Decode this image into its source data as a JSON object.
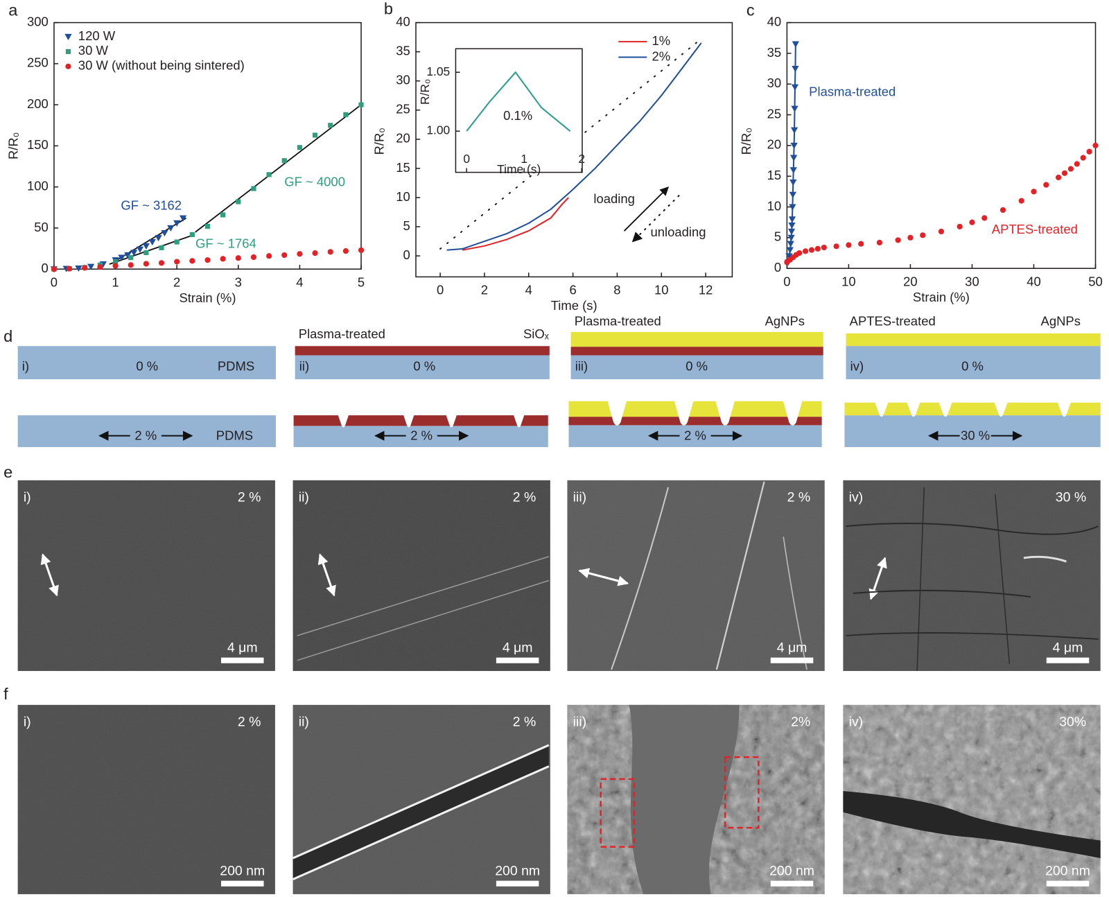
{
  "panel_labels": [
    "a",
    "b",
    "c",
    "d",
    "e",
    "f"
  ],
  "chart_data": [
    {
      "type": "scatter",
      "xlabel": "Strain (%)",
      "ylabel": "R/R₀",
      "xlim": [
        0,
        5
      ],
      "ylim": [
        0,
        300
      ],
      "xticks": [
        0,
        1,
        2,
        3,
        4,
        5
      ],
      "yticks": [
        0,
        50,
        100,
        150,
        200,
        250,
        300
      ],
      "legend": "upper left",
      "series": [
        {
          "name": "120 W",
          "color": "#1f4e9c",
          "marker": "triangle-down",
          "x": [
            0,
            0.2,
            0.4,
            0.6,
            0.8,
            1.0,
            1.1,
            1.2,
            1.3,
            1.4,
            1.5,
            1.6,
            1.7,
            1.8,
            1.9,
            2.0,
            2.1
          ],
          "values": [
            0,
            0.5,
            1,
            3,
            6,
            11,
            14,
            17,
            20,
            24,
            28,
            33,
            38,
            44,
            50,
            56,
            62
          ]
        },
        {
          "name": "30  W",
          "color": "#2e9e7e",
          "marker": "square",
          "x": [
            0,
            0.25,
            0.5,
            0.75,
            1,
            1.25,
            1.5,
            1.75,
            2,
            2.25,
            2.5,
            2.75,
            3,
            3.25,
            3.5,
            3.75,
            4,
            4.25,
            4.5,
            4.75,
            5
          ],
          "values": [
            0,
            0.5,
            2,
            5,
            9,
            14,
            20,
            26,
            33,
            42,
            52,
            66,
            82,
            98,
            115,
            132,
            148,
            163,
            175,
            188,
            200
          ]
        },
        {
          "name": "30 W (without being sintered)",
          "color": "#e32227",
          "marker": "circle",
          "x": [
            0,
            0.25,
            0.5,
            0.75,
            1,
            1.25,
            1.5,
            1.75,
            2,
            2.25,
            2.5,
            2.75,
            3,
            3.25,
            3.5,
            3.75,
            4,
            4.25,
            4.5,
            4.75,
            5
          ],
          "values": [
            0,
            0.5,
            1.5,
            2.5,
            4,
            5,
            6.5,
            7.5,
            9,
            10,
            11,
            12.5,
            13.5,
            14.5,
            16,
            17,
            18.5,
            19.5,
            21,
            22,
            23
          ]
        }
      ],
      "fit_lines": [
        {
          "label": "GF ~ 3162",
          "label_color": "#1f4e9c",
          "x": [
            1.0,
            2.15
          ],
          "values": [
            10,
            62
          ]
        },
        {
          "label": "GF ~ 1764",
          "label_color": "#2e9e7e",
          "x": [
            0.9,
            2.25
          ],
          "values": [
            6,
            41
          ]
        },
        {
          "label": "GF ~ 4000",
          "label_color": "#2e9e7e",
          "x": [
            2.3,
            5
          ],
          "values": [
            45,
            200
          ]
        }
      ]
    },
    {
      "type": "line",
      "xlabel": "Time (s)",
      "ylabel": "R/R₀",
      "xlim": [
        -1.1,
        13.2
      ],
      "ylim": [
        -3.6,
        40
      ],
      "xticks": [
        0,
        2,
        4,
        6,
        8,
        10,
        12
      ],
      "yticks": [
        0,
        5,
        10,
        15,
        20,
        25,
        30,
        35,
        40
      ],
      "legend": "upper right",
      "series": [
        {
          "name": "1%",
          "color": "#e32227",
          "linestyle": "solid",
          "x": [
            1,
            2,
            3,
            4,
            5,
            5.5,
            5.8
          ],
          "values": [
            1,
            1.7,
            2.8,
            4.3,
            6.5,
            8.8,
            10
          ]
        },
        {
          "name": "2%",
          "color": "#1f4e9c",
          "linestyle": "solid",
          "x": [
            0.3,
            1,
            2,
            3,
            4,
            5,
            6,
            7,
            8,
            9,
            10,
            11,
            11.8
          ],
          "values": [
            1,
            1.2,
            2.5,
            3.8,
            5.6,
            8,
            11.4,
            15,
            19,
            23,
            27.5,
            32.5,
            36.5
          ]
        },
        {
          "color": "#231f20",
          "linestyle": "dotted",
          "x": [
            0,
            11.6
          ],
          "values": [
            1.2,
            36.6
          ]
        }
      ],
      "annotations": [
        "loading",
        "unloading"
      ],
      "inset": {
        "xlabel": "Time (s)",
        "ylabel": "R/R₀",
        "xlim": [
          -0.19,
          2.01
        ],
        "ylim": [
          0.965,
          1.07
        ],
        "xticks": [
          0,
          1,
          2
        ],
        "yticks": [
          {
            "value": 1,
            "label": "1.00"
          },
          1.05
        ],
        "annotation": "0.1%",
        "color": "#2a9d8f",
        "x": [
          0,
          0.4,
          0.85,
          1.3,
          1.8
        ],
        "values": [
          1.0,
          1.025,
          1.05,
          1.02,
          1.0
        ]
      }
    },
    {
      "type": "scatter",
      "xlabel": "Strain (%)",
      "ylabel": "R/R₀",
      "xlim": [
        0,
        50
      ],
      "ylim": [
        0,
        40
      ],
      "xticks": [
        0,
        10,
        20,
        30,
        40,
        50
      ],
      "yticks": [
        0,
        5,
        10,
        15,
        20,
        25,
        30,
        35,
        40
      ],
      "direct_labels": true,
      "series": [
        {
          "name": "Plasma-treated",
          "color": "#1f4e9c",
          "marker": "triangle-down",
          "connect": true,
          "x": [
            0.2,
            0.35,
            0.5,
            0.6,
            0.7,
            0.75,
            0.8,
            0.85,
            0.9,
            0.95,
            1.0,
            1.05,
            1.1,
            1.15,
            1.2,
            1.25,
            1.3,
            1.35,
            1.4
          ],
          "values": [
            1,
            2,
            3,
            4,
            5,
            6,
            7,
            8,
            10,
            12,
            14,
            16,
            18,
            20,
            22.5,
            26,
            29.5,
            32.5,
            36.5
          ]
        },
        {
          "name": "APTES-treated",
          "color": "#e32227",
          "marker": "circle",
          "x": [
            0,
            0.5,
            1,
            1.5,
            2,
            3,
            4,
            5,
            6,
            8,
            10,
            12,
            15,
            18,
            20,
            22,
            25,
            28,
            30,
            32,
            35,
            38,
            40,
            42,
            44,
            45,
            46,
            47,
            48,
            49,
            50
          ],
          "values": [
            1,
            1.4,
            1.8,
            2.2,
            2.5,
            2.8,
            3.0,
            3.2,
            3.4,
            3.6,
            3.8,
            4.0,
            4.2,
            4.6,
            5,
            5.4,
            6,
            6.8,
            7.5,
            8.2,
            9.5,
            11,
            12.5,
            13.6,
            14.8,
            15.5,
            16.2,
            17,
            18,
            19,
            20
          ]
        }
      ]
    }
  ],
  "schematic": [
    {
      "numeral": "i)",
      "substrate": "PDMS",
      "strain_relaxed": "0 %",
      "substrate_stretched": "PDMS",
      "strain_stretched": "2 %"
    },
    {
      "numeral": "ii)",
      "treatment": "Plasma-treated",
      "film": "SiOₓ",
      "strain_relaxed": "0 %",
      "strain_stretched": "2 %"
    },
    {
      "numeral": "iii)",
      "treatment": "Plasma-treated",
      "film": "AgNPs",
      "strain_relaxed": "0 %",
      "strain_stretched": "2 %"
    },
    {
      "numeral": "iv)",
      "treatment": "APTES-treated",
      "film": "AgNPs",
      "strain_relaxed": "0 %",
      "strain_stretched": "30 %"
    }
  ],
  "sem_e": [
    {
      "numeral": "i)",
      "strain": "2 %",
      "scale_bar": "4 μm"
    },
    {
      "numeral": "ii)",
      "strain": "2 %",
      "scale_bar": "4 μm"
    },
    {
      "numeral": "iii)",
      "strain": "2 %",
      "scale_bar": "4 μm"
    },
    {
      "numeral": "iv)",
      "strain": "30 %",
      "scale_bar": "4 μm"
    }
  ],
  "sem_f": [
    {
      "numeral": "i)",
      "strain": "2 %",
      "scale_bar": "200 nm"
    },
    {
      "numeral": "ii)",
      "strain": "2 %",
      "scale_bar": "200 nm"
    },
    {
      "numeral": "iii)",
      "strain": "2%",
      "scale_bar": "200 nm"
    },
    {
      "numeral": "iv)",
      "strain": "30%",
      "scale_bar": "200 nm"
    }
  ]
}
